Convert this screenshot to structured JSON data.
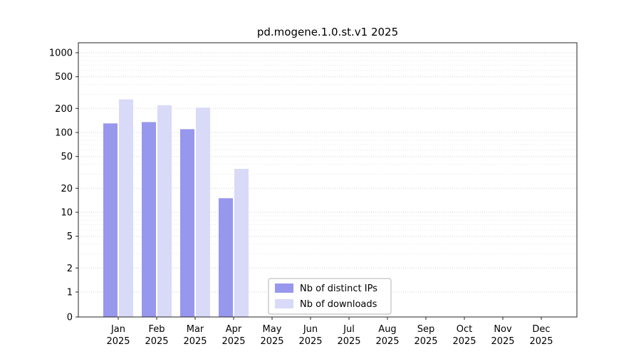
{
  "chart_data": {
    "type": "bar",
    "title": "pd.mogene.1.0.st.v1 2025",
    "categories": [
      "Jan",
      "Feb",
      "Mar",
      "Apr",
      "May",
      "Jun",
      "Jul",
      "Aug",
      "Sep",
      "Oct",
      "Nov",
      "Dec"
    ],
    "year_label": "2025",
    "series": [
      {
        "name": "Nb of distinct IPs",
        "color": "#9797ed",
        "values": [
          130,
          135,
          110,
          15,
          0,
          0,
          0,
          0,
          0,
          0,
          0,
          0
        ]
      },
      {
        "name": "Nb of downloads",
        "color": "#d9d9f8",
        "values": [
          260,
          220,
          205,
          35,
          0,
          0,
          0,
          0,
          0,
          0,
          0,
          0
        ]
      }
    ],
    "yscale": "symlog",
    "yticks": [
      0,
      1,
      2,
      5,
      10,
      20,
      50,
      100,
      200,
      500,
      1000
    ],
    "ylim": [
      0,
      1300
    ],
    "grid": true,
    "legend_position": "bottom-center"
  },
  "colors": {
    "background": "#ffffff",
    "axis": "#262626",
    "grid_major": "#cfcfcf",
    "grid_minor": "#e8e8e8",
    "legend_border": "#b3b3b3",
    "text": "#000000"
  }
}
